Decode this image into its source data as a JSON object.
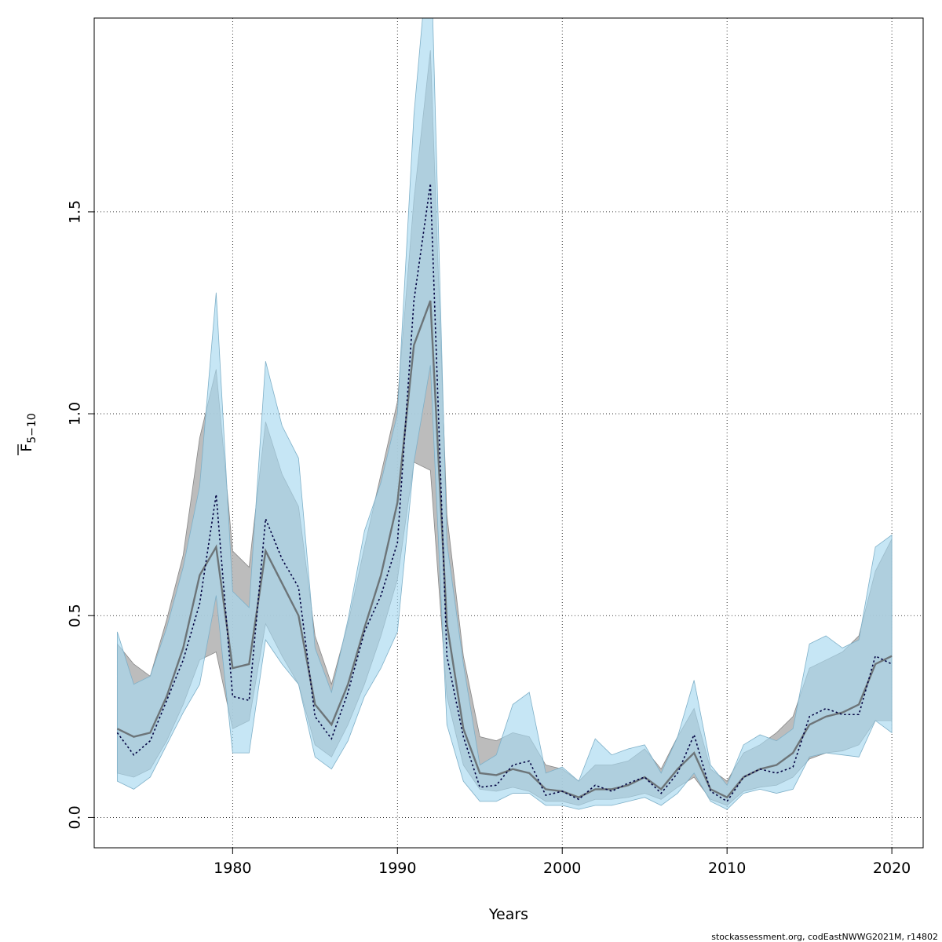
{
  "chart_data": {
    "type": "area",
    "xlabel": "Years",
    "ylabel_main": "F",
    "ylabel_sub": "5−10",
    "xlim": [
      1971.6,
      2021.9
    ],
    "ylim": [
      -0.075,
      1.98
    ],
    "xticks": [
      1980,
      1990,
      2000,
      2010,
      2020
    ],
    "yticks": [
      0.0,
      0.5,
      1.0,
      1.5
    ],
    "ytick_labels": [
      "0.0",
      "0.5",
      "1.0",
      "1.5"
    ],
    "grid": true,
    "credit": "stockassessment.org, codEastNWWG2021M, r14802",
    "colors": {
      "band_a": "#b0b0b0",
      "band_b": "#a8d8f0",
      "line_a": "#555555",
      "line_b": "#000040"
    },
    "x": [
      1973,
      1974,
      1975,
      1976,
      1977,
      1978,
      1979,
      1980,
      1981,
      1982,
      1983,
      1984,
      1985,
      1986,
      1987,
      1988,
      1989,
      1990,
      1991,
      1992,
      1993,
      1994,
      1995,
      1996,
      1997,
      1998,
      1999,
      2000,
      2001,
      2002,
      2003,
      2004,
      2005,
      2006,
      2007,
      2008,
      2009,
      2010,
      2011,
      2012,
      2013,
      2014,
      2015,
      2016,
      2017,
      2018,
      2019,
      2020
    ],
    "series": [
      {
        "kind": "solid",
        "values": [
          0.22,
          0.2,
          0.21,
          0.3,
          0.42,
          0.6,
          0.67,
          0.37,
          0.38,
          0.66,
          0.58,
          0.5,
          0.28,
          0.23,
          0.33,
          0.47,
          0.6,
          0.78,
          1.17,
          1.28,
          0.48,
          0.22,
          0.11,
          0.105,
          0.12,
          0.11,
          0.07,
          0.065,
          0.05,
          0.07,
          0.07,
          0.08,
          0.1,
          0.07,
          0.12,
          0.16,
          0.07,
          0.05,
          0.1,
          0.12,
          0.13,
          0.16,
          0.23,
          0.25,
          0.26,
          0.28,
          0.38,
          0.4
        ],
        "lower": [
          0.11,
          0.1,
          0.12,
          0.19,
          0.28,
          0.39,
          0.41,
          0.22,
          0.24,
          0.48,
          0.4,
          0.33,
          0.18,
          0.15,
          0.23,
          0.33,
          0.45,
          0.59,
          0.88,
          0.86,
          0.3,
          0.13,
          0.07,
          0.065,
          0.075,
          0.065,
          0.04,
          0.04,
          0.03,
          0.045,
          0.045,
          0.05,
          0.06,
          0.045,
          0.075,
          0.1,
          0.045,
          0.03,
          0.065,
          0.075,
          0.08,
          0.1,
          0.145,
          0.16,
          0.165,
          0.18,
          0.24,
          0.24
        ],
        "upper": [
          0.43,
          0.38,
          0.35,
          0.49,
          0.65,
          0.94,
          1.11,
          0.66,
          0.62,
          0.98,
          0.85,
          0.77,
          0.45,
          0.33,
          0.48,
          0.67,
          0.85,
          1.03,
          1.53,
          1.9,
          0.75,
          0.4,
          0.2,
          0.19,
          0.21,
          0.2,
          0.13,
          0.12,
          0.09,
          0.13,
          0.13,
          0.14,
          0.17,
          0.12,
          0.2,
          0.27,
          0.12,
          0.09,
          0.16,
          0.18,
          0.21,
          0.25,
          0.37,
          0.39,
          0.41,
          0.45,
          0.61,
          0.69
        ]
      },
      {
        "kind": "dotted",
        "values": [
          0.21,
          0.155,
          0.19,
          0.29,
          0.39,
          0.53,
          0.8,
          0.3,
          0.29,
          0.74,
          0.64,
          0.57,
          0.25,
          0.195,
          0.31,
          0.46,
          0.55,
          0.68,
          1.28,
          1.57,
          0.4,
          0.2,
          0.075,
          0.08,
          0.13,
          0.14,
          0.055,
          0.065,
          0.045,
          0.08,
          0.065,
          0.085,
          0.1,
          0.06,
          0.11,
          0.205,
          0.065,
          0.04,
          0.1,
          0.12,
          0.11,
          0.125,
          0.25,
          0.27,
          0.255,
          0.255,
          0.4,
          0.38
        ],
        "lower": [
          0.09,
          0.07,
          0.1,
          0.18,
          0.26,
          0.33,
          0.55,
          0.16,
          0.16,
          0.44,
          0.38,
          0.33,
          0.15,
          0.12,
          0.19,
          0.3,
          0.37,
          0.46,
          0.88,
          1.12,
          0.23,
          0.09,
          0.04,
          0.04,
          0.06,
          0.06,
          0.03,
          0.03,
          0.02,
          0.03,
          0.03,
          0.04,
          0.05,
          0.03,
          0.06,
          0.11,
          0.04,
          0.02,
          0.06,
          0.07,
          0.06,
          0.07,
          0.15,
          0.16,
          0.155,
          0.15,
          0.24,
          0.21
        ],
        "upper": [
          0.46,
          0.33,
          0.35,
          0.47,
          0.62,
          0.82,
          1.3,
          0.56,
          0.52,
          1.13,
          0.97,
          0.89,
          0.42,
          0.31,
          0.49,
          0.71,
          0.83,
          1.0,
          1.74,
          2.2,
          0.68,
          0.38,
          0.13,
          0.155,
          0.28,
          0.31,
          0.11,
          0.125,
          0.09,
          0.195,
          0.155,
          0.17,
          0.18,
          0.11,
          0.2,
          0.34,
          0.13,
          0.08,
          0.18,
          0.205,
          0.19,
          0.22,
          0.43,
          0.45,
          0.42,
          0.44,
          0.67,
          0.7
        ]
      }
    ]
  }
}
